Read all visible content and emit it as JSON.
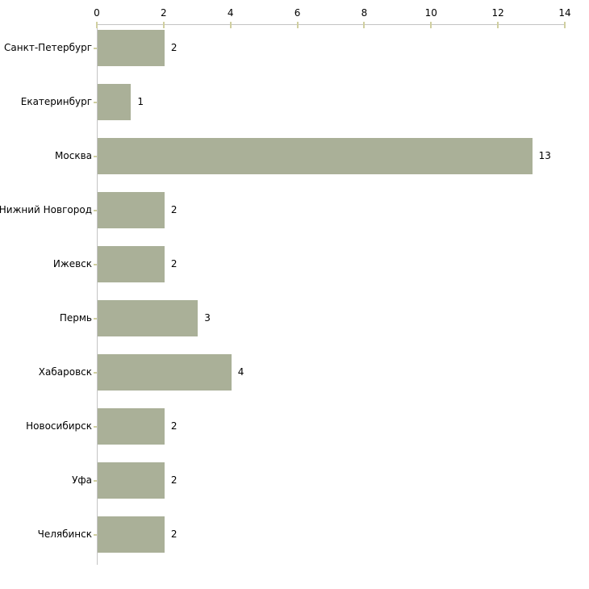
{
  "chart_data": {
    "type": "bar",
    "orientation": "horizontal",
    "title": "",
    "xlabel": "",
    "ylabel": "",
    "categories": [
      "Санкт-Петербург",
      "Екатеринбург",
      "Москва",
      "Нижний Новгород",
      "Ижевск",
      "Пермь",
      "Хабаровск",
      "Новосибирск",
      "Уфа",
      "Челябинск"
    ],
    "values": [
      2,
      1,
      13,
      2,
      2,
      3,
      4,
      2,
      2,
      2
    ],
    "xlim": [
      0,
      14
    ],
    "xticks": [
      0,
      2,
      4,
      6,
      8,
      10,
      12,
      14
    ],
    "grid": false,
    "legend": false,
    "value_labels": true,
    "colors": {
      "bar_fill": "#aab098",
      "axis_line": "#c4c4c4",
      "tick_mark": "#d0cfa0",
      "text": "#000000",
      "background": "#ffffff"
    }
  }
}
